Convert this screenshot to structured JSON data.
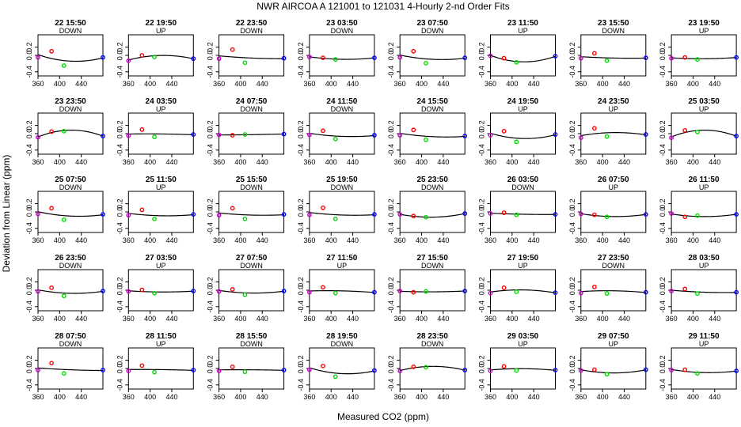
{
  "figure": {
    "title": "NWR   AIRCOA A   121001 to 121031   4-Hourly 2-nd Order Fits",
    "xlabel": "Measured CO2 (ppm)",
    "ylabel": "Deviation from Linear (ppm)"
  },
  "colors": {
    "fit_line": "#000000",
    "low_std": "#cc00cc",
    "mid_low_std": "#ff0000",
    "mid_high_std": "#00dd00",
    "high_std": "#0000ff"
  },
  "chart_data": {
    "type": "scatter",
    "layout": "grid 5 rows x 8 columns",
    "xlim": [
      360,
      480
    ],
    "ylim": [
      -0.5,
      0.5
    ],
    "x_ticks": [
      "360",
      "400",
      "440"
    ],
    "y_ticks": [
      "-0.4",
      "0.0",
      "0.2"
    ],
    "standard_x": [
      360,
      385,
      408,
      480
    ],
    "panels": [
      {
        "time": "22 15:50",
        "dir": "DOWN",
        "y": [
          -0.05,
          0.1,
          -0.25,
          -0.05
        ]
      },
      {
        "time": "22 19:50",
        "dir": "UP",
        "y": [
          -0.13,
          0.0,
          -0.04,
          -0.08
        ]
      },
      {
        "time": "22 23:50",
        "dir": "DOWN",
        "y": [
          -0.08,
          0.14,
          -0.18,
          -0.07
        ]
      },
      {
        "time": "23 03:50",
        "dir": "DOWN",
        "y": [
          -0.04,
          -0.06,
          -0.1,
          -0.06
        ]
      },
      {
        "time": "23 07:50",
        "dir": "DOWN",
        "y": [
          -0.05,
          0.1,
          -0.19,
          -0.06
        ]
      },
      {
        "time": "23 11:50",
        "dir": "UP",
        "y": [
          -0.01,
          -0.07,
          -0.17,
          -0.02
        ]
      },
      {
        "time": "23 15:50",
        "dir": "DOWN",
        "y": [
          -0.07,
          0.05,
          -0.13,
          -0.06
        ]
      },
      {
        "time": "23 19:50",
        "dir": "UP",
        "y": [
          -0.07,
          -0.05,
          -0.1,
          -0.05
        ]
      },
      {
        "time": "23 23:50",
        "dir": "DOWN",
        "y": [
          -0.09,
          0.05,
          0.06,
          -0.06
        ]
      },
      {
        "time": "24 03:50",
        "dir": "UP",
        "y": [
          -0.05,
          0.1,
          -0.08,
          -0.02
        ]
      },
      {
        "time": "24 07:50",
        "dir": "DOWN",
        "y": [
          -0.03,
          -0.04,
          -0.02,
          -0.01
        ]
      },
      {
        "time": "24 11:50",
        "dir": "DOWN",
        "y": [
          -0.03,
          0.07,
          -0.13,
          -0.04
        ]
      },
      {
        "time": "24 15:50",
        "dir": "DOWN",
        "y": [
          -0.04,
          0.09,
          -0.15,
          -0.06
        ]
      },
      {
        "time": "24 19:50",
        "dir": "UP",
        "y": [
          -0.04,
          0.06,
          -0.2,
          -0.02
        ]
      },
      {
        "time": "24 23:50",
        "dir": "UP",
        "y": [
          -0.1,
          0.13,
          -0.07,
          -0.02
        ]
      },
      {
        "time": "25 03:50",
        "dir": "UP",
        "y": [
          -0.1,
          0.08,
          0.04,
          -0.06
        ]
      },
      {
        "time": "25 07:50",
        "dir": "DOWN",
        "y": [
          -0.05,
          0.09,
          -0.19,
          -0.06
        ]
      },
      {
        "time": "25 11:50",
        "dir": "UP",
        "y": [
          -0.08,
          0.05,
          -0.17,
          -0.06
        ]
      },
      {
        "time": "25 15:50",
        "dir": "DOWN",
        "y": [
          -0.08,
          0.09,
          -0.17,
          -0.06
        ]
      },
      {
        "time": "25 19:50",
        "dir": "DOWN",
        "y": [
          -0.07,
          0.1,
          -0.17,
          -0.06
        ]
      },
      {
        "time": "25 23:50",
        "dir": "DOWN",
        "y": [
          -0.06,
          -0.1,
          -0.13,
          -0.04
        ]
      },
      {
        "time": "26 03:50",
        "dir": "DOWN",
        "y": [
          -0.04,
          -0.02,
          -0.07,
          -0.06
        ]
      },
      {
        "time": "26 07:50",
        "dir": "UP",
        "y": [
          -0.05,
          -0.07,
          -0.12,
          -0.06
        ]
      },
      {
        "time": "26 11:50",
        "dir": "UP",
        "y": [
          -0.04,
          -0.12,
          -0.09,
          -0.06
        ]
      },
      {
        "time": "26 23:50",
        "dir": "DOWN",
        "y": [
          -0.03,
          0.06,
          -0.14,
          -0.02
        ]
      },
      {
        "time": "27 03:50",
        "dir": "UP",
        "y": [
          -0.03,
          0.01,
          -0.07,
          -0.02
        ]
      },
      {
        "time": "27 07:50",
        "dir": "DOWN",
        "y": [
          -0.03,
          0.02,
          -0.11,
          -0.02
        ]
      },
      {
        "time": "27 11:50",
        "dir": "UP",
        "y": [
          -0.05,
          0.07,
          -0.07,
          -0.05
        ]
      },
      {
        "time": "27 15:50",
        "dir": "DOWN",
        "y": [
          -0.02,
          -0.05,
          -0.03,
          -0.02
        ]
      },
      {
        "time": "27 19:50",
        "dir": "UP",
        "y": [
          -0.07,
          0.06,
          -0.04,
          -0.06
        ]
      },
      {
        "time": "27 23:50",
        "dir": "DOWN",
        "y": [
          -0.07,
          0.08,
          -0.08,
          -0.05
        ]
      },
      {
        "time": "28 03:50",
        "dir": "UP",
        "y": [
          -0.02,
          0.03,
          -0.08,
          -0.05
        ]
      },
      {
        "time": "28 07:50",
        "dir": "DOWN",
        "y": [
          -0.04,
          0.13,
          -0.12,
          -0.04
        ]
      },
      {
        "time": "28 11:50",
        "dir": "UP",
        "y": [
          -0.06,
          0.07,
          -0.09,
          -0.04
        ]
      },
      {
        "time": "28 15:50",
        "dir": "DOWN",
        "y": [
          -0.06,
          0.04,
          -0.08,
          -0.04
        ]
      },
      {
        "time": "28 19:50",
        "dir": "DOWN",
        "y": [
          -0.03,
          0.06,
          -0.2,
          -0.05
        ]
      },
      {
        "time": "28 23:50",
        "dir": "DOWN",
        "y": [
          -0.06,
          0.04,
          0.03,
          -0.04
        ]
      },
      {
        "time": "29 03:50",
        "dir": "UP",
        "y": [
          -0.06,
          0.05,
          -0.05,
          -0.04
        ]
      },
      {
        "time": "29 07:50",
        "dir": "UP",
        "y": [
          -0.05,
          -0.03,
          -0.14,
          -0.03
        ]
      },
      {
        "time": "29 11:50",
        "dir": "UP",
        "y": [
          -0.04,
          -0.03,
          -0.12,
          -0.06
        ]
      }
    ]
  }
}
